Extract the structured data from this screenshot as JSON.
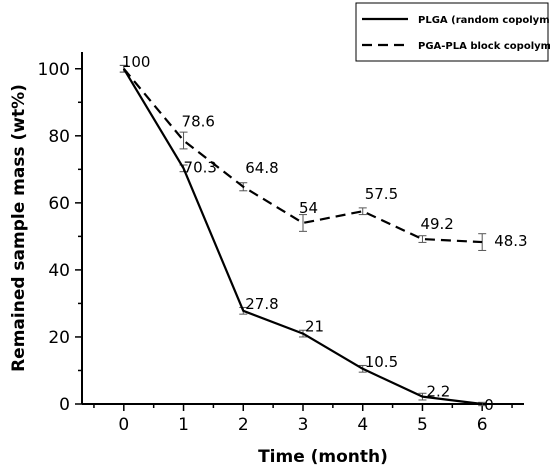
{
  "chart_data": {
    "type": "line",
    "xlabel": "Time (month)",
    "ylabel": "Remained sample mass (wt%)",
    "xlim": [
      -0.7,
      6.7
    ],
    "ylim": [
      0,
      105
    ],
    "x_ticks": [
      0,
      1,
      2,
      3,
      4,
      5,
      6
    ],
    "y_ticks": [
      0,
      20,
      40,
      60,
      80,
      100
    ],
    "grid": false,
    "legend_position": "top-right",
    "x": [
      0,
      1,
      2,
      3,
      4,
      5,
      6
    ],
    "series": [
      {
        "name": "PLGA (random copolymer)",
        "style": "solid",
        "values": [
          100,
          70.3,
          27.8,
          21,
          10.5,
          2.2,
          0
        ],
        "labels": [
          "100",
          "70.3",
          "27.8",
          "21",
          "10.5",
          "2.2",
          "0"
        ],
        "errors": [
          1,
          1,
          1,
          1,
          1,
          1,
          0.5
        ]
      },
      {
        "name": "PGA-PLA block copolymer",
        "style": "dashed",
        "values": [
          100,
          78.6,
          64.8,
          54,
          57.5,
          49.2,
          48.3
        ],
        "labels": [
          "",
          "78.6",
          "64.8",
          "54",
          "57.5",
          "49.2",
          "48.3"
        ],
        "errors": [
          1,
          2.5,
          1.2,
          2.5,
          1,
          1,
          2.5
        ]
      }
    ]
  }
}
